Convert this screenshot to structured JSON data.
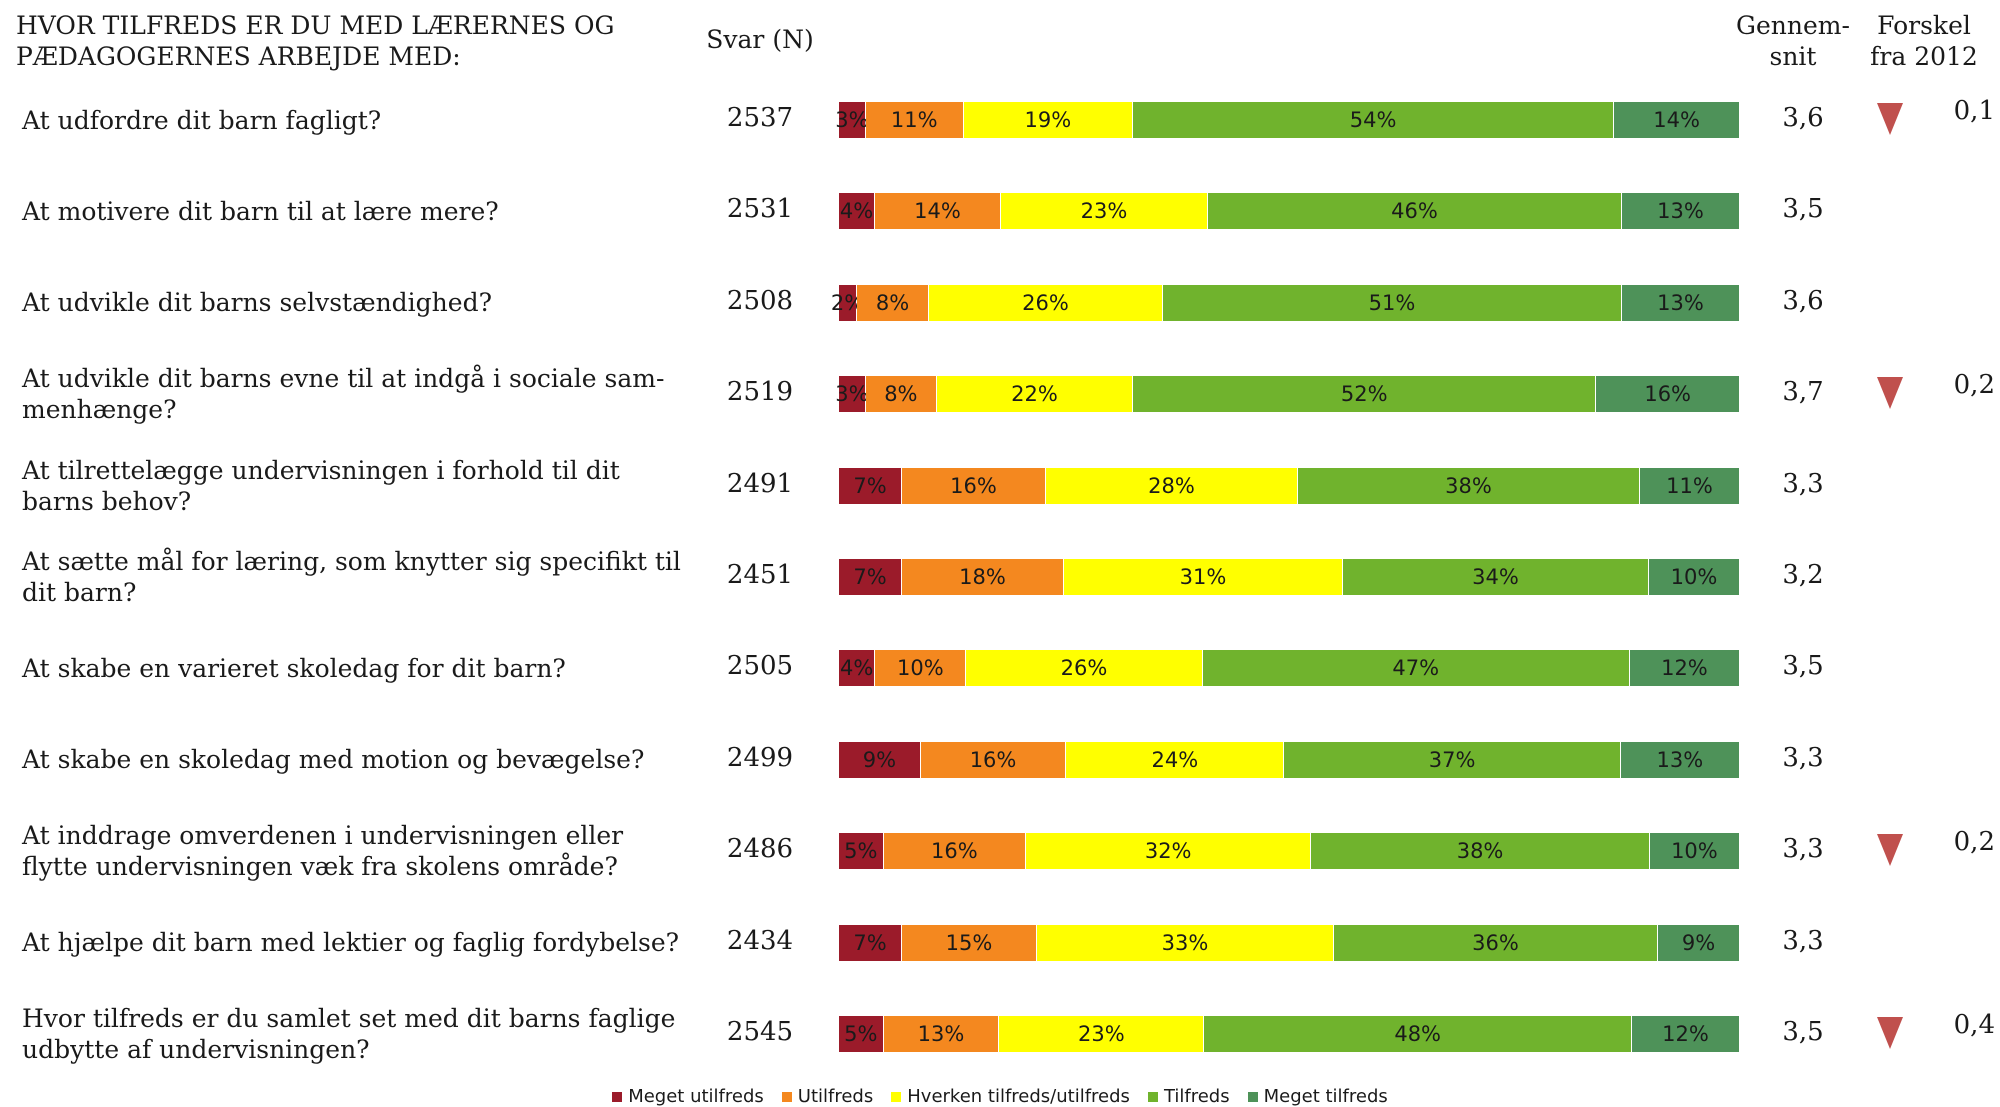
{
  "headers": {
    "title_line1": "HVOR TILFREDS ER DU MED LÆRERNES OG",
    "title_line2": "PÆDAGOGERNES ARBEJDE MED:",
    "n": "Svar (N)",
    "mean_line1": "Gennem-",
    "mean_line2": "snit",
    "diff_line1": "Forskel",
    "diff_line2": "fra 2012"
  },
  "colors": {
    "meget_utilfreds": "#9b1b2a",
    "utilfreds": "#f4881f",
    "hverken": "#ffff00",
    "tilfreds": "#70b32d",
    "meget_tilfreds": "#4e9259",
    "triangle": "#c0504d"
  },
  "chart_data": {
    "type": "bar",
    "stacked": true,
    "orientation": "horizontal",
    "percent": true,
    "legend_position": "bottom",
    "series": [
      {
        "name": "Meget utilfreds",
        "color_key": "meget_utilfreds"
      },
      {
        "name": "Utilfreds",
        "color_key": "utilfreds"
      },
      {
        "name": "Hverken tilfreds/utilfreds",
        "color_key": "hverken"
      },
      {
        "name": "Tilfreds",
        "color_key": "tilfreds"
      },
      {
        "name": "Meget tilfreds",
        "color_key": "meget_tilfreds"
      }
    ],
    "rows": [
      {
        "label": "At udfordre dit barn fagligt?",
        "n": "2537",
        "values": [
          3,
          11,
          19,
          54,
          14
        ],
        "mean": "3,6",
        "diff": "0,1",
        "down": true
      },
      {
        "label": "At motivere dit barn til at lære mere?",
        "n": "2531",
        "values": [
          4,
          14,
          23,
          46,
          13
        ],
        "mean": "3,5",
        "diff": "",
        "down": false
      },
      {
        "label": "At udvikle dit barns selvstændighed?",
        "n": "2508",
        "values": [
          2,
          8,
          26,
          51,
          13
        ],
        "mean": "3,6",
        "diff": "",
        "down": false
      },
      {
        "label": "At udvikle dit barns evne til at indgå i sociale sam-\nmenhænge?",
        "n": "2519",
        "values": [
          3,
          8,
          22,
          52,
          16
        ],
        "mean": "3,7",
        "diff": "0,2",
        "down": true
      },
      {
        "label": "At tilrettelægge undervisningen i forhold til dit\nbarns behov?",
        "n": "2491",
        "values": [
          7,
          16,
          28,
          38,
          11
        ],
        "mean": "3,3",
        "diff": "",
        "down": false
      },
      {
        "label": "At sætte mål for læring, som knytter sig specifikt til\ndit barn?",
        "n": "2451",
        "values": [
          7,
          18,
          31,
          34,
          10
        ],
        "mean": "3,2",
        "diff": "",
        "down": false
      },
      {
        "label": "At skabe en varieret skoledag for dit barn?",
        "n": "2505",
        "values": [
          4,
          10,
          26,
          47,
          12
        ],
        "mean": "3,5",
        "diff": "",
        "down": false
      },
      {
        "label": "At skabe en skoledag med motion og bevægelse?",
        "n": "2499",
        "values": [
          9,
          16,
          24,
          37,
          13
        ],
        "mean": "3,3",
        "diff": "",
        "down": false
      },
      {
        "label": "At inddrage omverdenen i undervisningen eller\nflytte  undervisningen væk fra skolens område?",
        "n": "2486",
        "values": [
          5,
          16,
          32,
          38,
          10
        ],
        "mean": "3,3",
        "diff": "0,2",
        "down": true
      },
      {
        "label": "At hjælpe dit barn med lektier og faglig fordybelse?",
        "n": "2434",
        "values": [
          7,
          15,
          33,
          36,
          9
        ],
        "mean": "3,3",
        "diff": "",
        "down": false
      },
      {
        "label": "Hvor tilfreds er du samlet set med dit barns faglige\nudbytte af undervisningen?",
        "n": "2545",
        "values": [
          5,
          13,
          23,
          48,
          12
        ],
        "mean": "3,5",
        "diff": "0,4",
        "down": true
      }
    ]
  }
}
